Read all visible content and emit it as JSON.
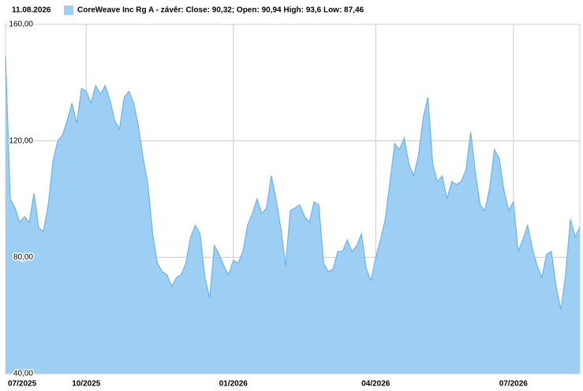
{
  "chart_data": {
    "type": "area",
    "date": "11.08.2026",
    "categories": [
      "07/2025",
      null,
      null,
      null,
      null,
      null,
      null,
      null,
      null,
      null,
      null,
      null,
      null,
      null,
      null,
      null,
      null,
      "10/2025",
      null,
      null,
      null,
      null,
      null,
      null,
      null,
      null,
      null,
      null,
      null,
      null,
      null,
      null,
      null,
      null,
      null,
      null,
      null,
      null,
      null,
      null,
      null,
      null,
      null,
      null,
      null,
      null,
      null,
      null,
      "01/2026",
      null,
      null,
      null,
      null,
      null,
      null,
      null,
      null,
      null,
      null,
      null,
      null,
      null,
      null,
      null,
      null,
      null,
      null,
      null,
      null,
      null,
      null,
      null,
      null,
      null,
      null,
      null,
      null,
      null,
      "04/2026",
      null,
      null,
      null,
      null,
      null,
      null,
      null,
      null,
      null,
      null,
      null,
      null,
      null,
      null,
      null,
      null,
      null,
      null,
      null,
      null,
      null,
      null,
      null,
      null,
      null,
      null,
      null,
      null,
      "07/2026",
      null,
      null,
      null,
      null,
      null,
      null,
      null,
      null,
      null,
      null,
      null,
      null,
      null,
      null
    ],
    "series": [
      {
        "name": "CoreWeave Inc Rg A - závěr: Close: 90,32; Open: 90,94 High: 93,6 Low: 87,46",
        "color": "#9dcff5",
        "line_color": "#6bb3ea",
        "values": [
          149,
          100,
          97,
          92,
          94,
          92,
          102,
          90,
          89,
          98,
          113,
          120,
          122,
          127,
          133,
          126,
          138,
          137,
          133,
          139,
          136,
          139,
          134,
          127,
          124,
          135,
          137,
          133,
          125,
          114,
          105,
          88,
          78,
          75,
          74,
          70,
          73,
          74,
          78,
          87,
          91,
          88,
          73,
          66,
          84,
          81,
          77,
          74,
          79,
          78,
          82,
          91,
          95,
          100,
          95,
          97,
          108,
          100,
          90,
          77,
          96,
          97,
          98,
          94,
          92,
          99,
          98,
          78,
          75,
          76,
          82,
          82,
          86,
          82,
          84,
          88,
          76,
          72,
          80,
          86,
          93,
          106,
          119,
          117,
          121,
          112,
          108,
          115,
          128,
          135,
          112,
          106,
          108,
          100,
          106,
          105,
          106,
          110,
          123,
          109,
          98,
          96,
          104,
          117,
          114,
          103,
          96,
          99,
          82,
          86,
          91,
          83,
          77,
          73,
          81,
          82,
          70,
          62,
          74,
          93,
          87,
          90.32
        ]
      }
    ],
    "ylim": [
      40,
      160
    ],
    "yticks": [
      {
        "value": 40,
        "label": "40,00"
      },
      {
        "value": 80,
        "label": "80,00"
      },
      {
        "value": 120,
        "label": "120,00"
      },
      {
        "value": 160,
        "label": "160,00"
      }
    ],
    "grid": true
  }
}
